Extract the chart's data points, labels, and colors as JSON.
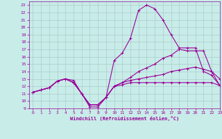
{
  "title": "",
  "xlabel": "Windchill (Refroidissement éolien,°C)",
  "xlim": [
    -0.5,
    23
  ],
  "ylim": [
    9,
    23.5
  ],
  "yticks": [
    9,
    10,
    11,
    12,
    13,
    14,
    15,
    16,
    17,
    18,
    19,
    20,
    21,
    22,
    23
  ],
  "xticks": [
    0,
    1,
    2,
    3,
    4,
    5,
    6,
    7,
    8,
    9,
    10,
    11,
    12,
    13,
    14,
    15,
    16,
    17,
    18,
    19,
    20,
    21,
    22,
    23
  ],
  "bg_color": "#c8ece8",
  "line_color": "#990099",
  "grid_color": "#aacccc",
  "lines": [
    {
      "x": [
        0,
        1,
        2,
        3,
        4,
        5,
        6,
        7,
        8,
        9,
        10,
        11,
        12,
        13,
        14,
        15,
        16,
        17,
        18,
        19,
        20,
        21,
        22,
        23
      ],
      "y": [
        11.2,
        11.5,
        11.8,
        12.7,
        13.0,
        12.8,
        11.0,
        9.2,
        9.2,
        10.5,
        15.5,
        16.5,
        18.5,
        22.3,
        23.0,
        22.5,
        21.0,
        19.0,
        17.2,
        17.2,
        17.2,
        14.0,
        13.5,
        12.1
      ]
    },
    {
      "x": [
        0,
        1,
        2,
        3,
        4,
        5,
        6,
        7,
        8,
        9,
        10,
        11,
        12,
        13,
        14,
        15,
        16,
        17,
        18,
        19,
        20,
        21,
        22,
        23
      ],
      "y": [
        11.2,
        11.5,
        11.8,
        12.7,
        13.0,
        12.5,
        11.0,
        9.5,
        9.5,
        10.5,
        12.0,
        12.5,
        13.2,
        14.0,
        14.5,
        15.0,
        15.8,
        16.2,
        17.0,
        16.8,
        16.8,
        16.8,
        14.0,
        13.0
      ]
    },
    {
      "x": [
        0,
        1,
        2,
        3,
        4,
        5,
        6,
        7,
        8,
        9,
        10,
        11,
        12,
        13,
        14,
        15,
        16,
        17,
        18,
        19,
        20,
        21,
        22,
        23
      ],
      "y": [
        11.2,
        11.5,
        11.8,
        12.7,
        13.0,
        12.5,
        11.0,
        9.5,
        9.5,
        10.5,
        12.0,
        12.5,
        12.8,
        13.0,
        13.2,
        13.4,
        13.6,
        14.0,
        14.2,
        14.4,
        14.6,
        14.3,
        14.0,
        12.1
      ]
    },
    {
      "x": [
        0,
        1,
        2,
        3,
        4,
        5,
        6,
        7,
        8,
        9,
        10,
        11,
        12,
        13,
        14,
        15,
        16,
        17,
        18,
        19,
        20,
        21,
        22,
        23
      ],
      "y": [
        11.2,
        11.5,
        11.8,
        12.7,
        13.0,
        12.5,
        11.0,
        9.5,
        9.5,
        10.5,
        12.0,
        12.2,
        12.5,
        12.5,
        12.5,
        12.5,
        12.5,
        12.5,
        12.5,
        12.5,
        12.5,
        12.5,
        12.5,
        12.1
      ]
    }
  ]
}
